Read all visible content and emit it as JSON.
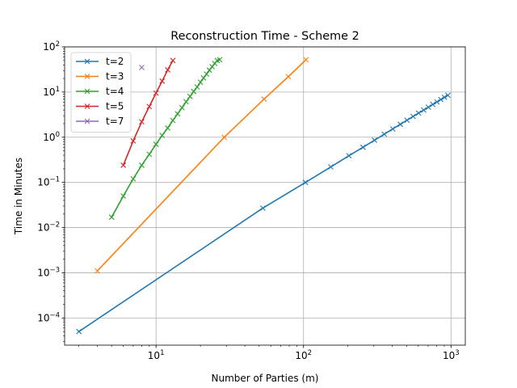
{
  "chart_data": {
    "type": "line",
    "title": "Reconstruction Time - Scheme 2",
    "xlabel": "Number of Parties (m)",
    "ylabel": "Time in Minutes",
    "xscale": "log",
    "yscale": "log",
    "xlim": [
      2.4,
      1250
    ],
    "ylim": [
      2.5e-05,
      100
    ],
    "grid": true,
    "legend": "top-left",
    "x_ticks": [
      {
        "value": 10,
        "base": "10",
        "exp": "1"
      },
      {
        "value": 100,
        "base": "10",
        "exp": "2"
      },
      {
        "value": 1000,
        "base": "10",
        "exp": "3"
      }
    ],
    "y_ticks": [
      {
        "value": 0.0001,
        "base": "10",
        "exp": "−4"
      },
      {
        "value": 0.001,
        "base": "10",
        "exp": "−3"
      },
      {
        "value": 0.01,
        "base": "10",
        "exp": "−2"
      },
      {
        "value": 0.1,
        "base": "10",
        "exp": "−1"
      },
      {
        "value": 1,
        "base": "10",
        "exp": "0"
      },
      {
        "value": 10,
        "base": "10",
        "exp": "1"
      },
      {
        "value": 100,
        "base": "10",
        "exp": "2"
      }
    ],
    "series": [
      {
        "name": "t=2",
        "color": "#1f77b4",
        "x": [
          3,
          53,
          103,
          153,
          203,
          253,
          303,
          353,
          403,
          453,
          503,
          553,
          603,
          653,
          703,
          753,
          803,
          853,
          903,
          953
        ],
        "y": [
          5e-05,
          0.027,
          0.1,
          0.22,
          0.39,
          0.6,
          0.86,
          1.17,
          1.53,
          1.93,
          2.38,
          2.88,
          3.43,
          4.0,
          4.63,
          5.33,
          6.05,
          6.83,
          7.65,
          8.5
        ]
      },
      {
        "name": "t=3",
        "color": "#ff7f0e",
        "x": [
          4,
          29,
          54,
          79,
          104
        ],
        "y": [
          0.0011,
          1.0,
          7.0,
          22,
          52
        ]
      },
      {
        "name": "t=4",
        "color": "#2ca02c",
        "x": [
          5,
          6,
          7,
          8,
          9,
          10,
          11,
          12,
          13,
          14,
          15,
          16,
          17,
          18,
          19,
          20,
          21,
          22,
          23,
          24,
          25,
          26,
          27
        ],
        "y": [
          0.017,
          0.05,
          0.12,
          0.24,
          0.42,
          0.7,
          1.1,
          1.6,
          2.35,
          3.3,
          4.5,
          6.1,
          8.0,
          10.3,
          13.0,
          16.5,
          20.5,
          25,
          30.5,
          36.5,
          43,
          50,
          52
        ]
      },
      {
        "name": "t=5",
        "color": "#d62728",
        "x": [
          6,
          7,
          8,
          9,
          10,
          11,
          12,
          13
        ],
        "y": [
          0.24,
          0.83,
          2.2,
          4.8,
          9.5,
          17.5,
          31,
          50
        ]
      },
      {
        "name": "t=7",
        "color": "#9467bd",
        "x": [
          8
        ],
        "y": [
          35
        ]
      }
    ]
  }
}
